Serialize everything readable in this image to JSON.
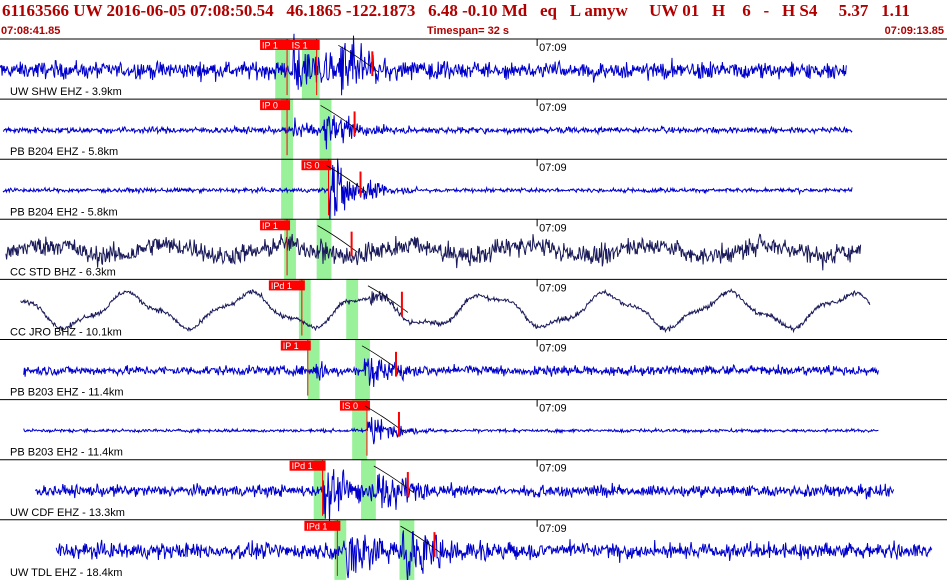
{
  "header": {
    "title": "61163566 UW 2016-06-05 07:08:50.54   46.1865 -122.1873   6.48 -0.10 Md   eq   L amyw     UW 01   H    6   -   H S4     5.37   1.11",
    "start_time": "07:08:41.85",
    "timespan": "Timespan=  32 s",
    "end_time": "07:09:13.85"
  },
  "colors": {
    "header_text": "#b00000",
    "trace_blue": "#0000cc",
    "trace_navy": "#1a1a5a",
    "pick_tag": "#ff0000",
    "window_green": "#99f299",
    "panel_border": "#000000"
  },
  "chart_data": {
    "type": "seismogram",
    "x_range_s": [
      0,
      32
    ],
    "minute_tick": {
      "label": "07:09",
      "t": 18.15
    },
    "traces": [
      {
        "label": "UW SHW EHZ - 3.9km",
        "color": "blue",
        "start": 0.0,
        "end": 28.6,
        "noise": 0.32,
        "long_period": 0,
        "windows": [
          [
            9.3,
            9.8
          ],
          [
            10.2,
            10.8
          ]
        ],
        "picks": [
          {
            "tag": "IP 1",
            "t": 9.7
          },
          {
            "tag": "IS 1",
            "t": 10.7
          }
        ],
        "arrivals": [
          {
            "t": 9.9,
            "amp": 1.0,
            "dur": 5.0
          },
          {
            "t": 11.5,
            "amp": 1.0,
            "dur": 4.0
          }
        ]
      },
      {
        "label": "PB B204 EHZ - 5.8km",
        "color": "blue",
        "start": 0.1,
        "end": 28.8,
        "noise": 0.12,
        "long_period": 0,
        "windows": [
          [
            9.5,
            9.9
          ],
          [
            10.8,
            11.2
          ]
        ],
        "picks": [
          {
            "tag": "IP 0",
            "t": 9.7
          }
        ],
        "arrivals": [
          {
            "t": 9.9,
            "amp": 0.45,
            "dur": 2.5
          },
          {
            "t": 10.9,
            "amp": 0.8,
            "dur": 3.0
          }
        ]
      },
      {
        "label": "PB B204 EH2 - 5.8km",
        "color": "blue",
        "start": 0.1,
        "end": 28.8,
        "noise": 0.08,
        "long_period": 0,
        "windows": [
          [
            9.5,
            9.9
          ],
          [
            10.8,
            11.2
          ]
        ],
        "picks": [
          {
            "tag": "IS 0",
            "t": 11.1
          }
        ],
        "arrivals": [
          {
            "t": 11.1,
            "amp": 1.2,
            "dur": 3.0
          }
        ]
      },
      {
        "label": "CC STD BHZ - 6.3km",
        "color": "navy",
        "start": 0.2,
        "end": 29.1,
        "noise": 0.38,
        "long_period": 0.22,
        "windows": [
          [
            9.6,
            10.0
          ],
          [
            10.7,
            11.2
          ]
        ],
        "picks": [
          {
            "tag": "IP 1",
            "t": 9.7
          }
        ],
        "arrivals": [
          {
            "t": 10.8,
            "amp": 0.35,
            "dur": 3.0
          }
        ]
      },
      {
        "label": "CC JRO BHZ - 10.1km",
        "color": "navy",
        "start": 0.7,
        "end": 29.4,
        "noise": 0.09,
        "long_period": 0.6,
        "windows": [
          [
            10.1,
            10.5
          ],
          [
            11.7,
            12.1
          ]
        ],
        "picks": [
          {
            "tag": "IPd 1",
            "t": 10.2
          }
        ],
        "arrivals": [
          {
            "t": 12.5,
            "amp": 0.25,
            "dur": 2.5
          }
        ]
      },
      {
        "label": "PB B203 EHZ - 11.4km",
        "color": "blue",
        "start": 0.8,
        "end": 29.7,
        "noise": 0.18,
        "long_period": 0,
        "windows": [
          [
            10.4,
            10.8
          ],
          [
            12.0,
            12.5
          ]
        ],
        "picks": [
          {
            "tag": "IP 1",
            "t": 10.4
          }
        ],
        "arrivals": [
          {
            "t": 10.6,
            "amp": 0.4,
            "dur": 2.0
          },
          {
            "t": 12.3,
            "amp": 0.75,
            "dur": 3.0
          }
        ]
      },
      {
        "label": "PB B203 EH2 - 11.4km",
        "color": "blue",
        "start": 0.8,
        "end": 29.7,
        "noise": 0.06,
        "long_period": 0,
        "windows": [
          [
            11.9,
            12.4
          ]
        ],
        "picks": [
          {
            "tag": "IS 0",
            "t": 12.4
          }
        ],
        "arrivals": [
          {
            "t": 12.4,
            "amp": 0.6,
            "dur": 2.5
          }
        ]
      },
      {
        "label": "UW CDF EHZ - 13.3km",
        "color": "blue",
        "start": 1.2,
        "end": 30.2,
        "noise": 0.22,
        "long_period": 0,
        "windows": [
          [
            10.6,
            11.0
          ],
          [
            12.2,
            12.7
          ]
        ],
        "picks": [
          {
            "tag": "IPd 1",
            "t": 10.9
          }
        ],
        "arrivals": [
          {
            "t": 10.9,
            "amp": 0.9,
            "dur": 3.5
          },
          {
            "t": 12.7,
            "amp": 0.9,
            "dur": 4.0
          }
        ]
      },
      {
        "label": "UW TDL EHZ - 18.4km",
        "color": "blue",
        "start": 1.9,
        "end": 31.5,
        "noise": 0.3,
        "long_period": 0,
        "windows": [
          [
            11.3,
            11.7
          ],
          [
            13.5,
            14.0
          ]
        ],
        "picks": [
          {
            "tag": "IPd 1",
            "t": 11.4
          }
        ],
        "arrivals": [
          {
            "t": 11.7,
            "amp": 1.2,
            "dur": 3.5
          },
          {
            "t": 13.6,
            "amp": 1.1,
            "dur": 4.0
          }
        ]
      }
    ]
  }
}
